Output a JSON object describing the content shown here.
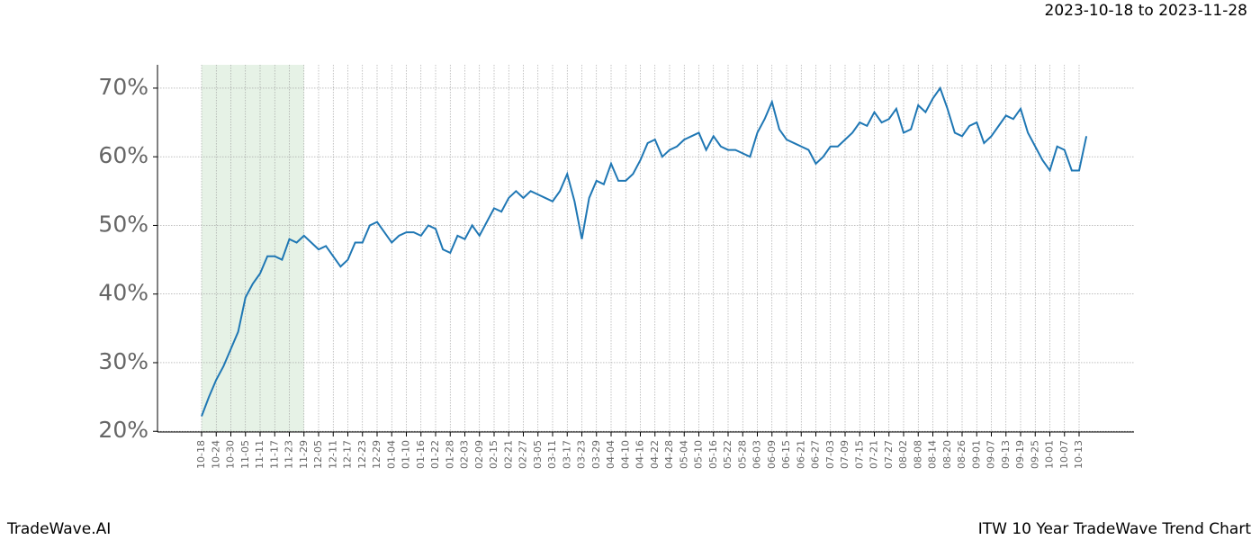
{
  "chart_data": {
    "type": "line",
    "title": "2023-10-18 to 2023-11-28",
    "footer_left": "TradeWave.AI",
    "footer_right": "ITW 10 Year TradeWave Trend Chart",
    "categories": [
      "10-18",
      null,
      "10-24",
      null,
      "10-30",
      null,
      "11-05",
      null,
      "11-11",
      null,
      "11-17",
      null,
      "11-23",
      null,
      "11-29",
      null,
      "12-05",
      null,
      "12-11",
      null,
      "12-17",
      null,
      "12-23",
      null,
      "12-29",
      null,
      "01-04",
      null,
      "01-10",
      null,
      "01-16",
      null,
      "01-22",
      null,
      "01-28",
      null,
      "02-03",
      null,
      "02-09",
      null,
      "02-15",
      null,
      "02-21",
      null,
      "02-27",
      null,
      "03-05",
      null,
      "03-11",
      null,
      "03-17",
      null,
      "03-23",
      null,
      "03-29",
      null,
      "04-04",
      null,
      "04-10",
      null,
      "04-16",
      null,
      "04-22",
      null,
      "04-28",
      null,
      "05-04",
      null,
      "05-10",
      null,
      "05-16",
      null,
      "05-22",
      null,
      "05-28",
      null,
      "06-03",
      null,
      "06-09",
      null,
      "06-15",
      null,
      "06-21",
      null,
      "06-27",
      null,
      "07-03",
      null,
      "07-09",
      null,
      "07-15",
      null,
      "07-21",
      null,
      "07-27",
      null,
      "08-02",
      null,
      "08-08",
      null,
      "08-14",
      null,
      "08-20",
      null,
      "08-26",
      null,
      "09-01",
      null,
      "09-07",
      null,
      "09-13",
      null,
      "09-19",
      null,
      "09-25",
      null,
      "10-01",
      null,
      "10-07",
      null,
      "10-13",
      null
    ],
    "series": [
      {
        "name": "ITW",
        "color": "#1f77b4",
        "values": [
          22.2,
          25,
          27.5,
          29.5,
          32,
          34.5,
          39.5,
          41.5,
          43,
          45.5,
          45.5,
          45,
          48,
          47.5,
          48.5,
          47.5,
          46.5,
          47,
          45.5,
          44,
          45,
          47.5,
          47.5,
          50,
          50.5,
          49,
          47.5,
          48.5,
          49,
          49,
          48.5,
          50,
          49.5,
          46.5,
          46,
          48.5,
          48,
          50,
          48.5,
          50.5,
          52.5,
          52,
          54,
          55,
          54,
          55,
          54.5,
          54,
          53.5,
          55,
          57.5,
          53.5,
          48,
          54,
          56.5,
          56,
          59,
          56.5,
          56.5,
          57.5,
          59.5,
          62,
          62.5,
          60,
          61,
          61.5,
          62.5,
          63,
          63.5,
          61,
          63,
          61.5,
          61,
          61,
          60.5,
          60,
          63.5,
          65.5,
          68,
          64,
          62.5,
          62,
          61.5,
          61,
          59,
          60,
          61.5,
          61.5,
          62.5,
          63.5,
          65,
          64.5,
          66.5,
          65,
          65.5,
          67,
          63.5,
          64,
          67.5,
          66.5,
          68.5,
          70,
          67,
          63.5,
          63,
          64.5,
          65,
          62,
          63,
          64.5,
          66,
          65.5,
          67,
          63.5,
          61.5,
          59.5,
          58,
          61.5,
          61,
          58,
          58,
          63
        ]
      }
    ],
    "ylim": [
      19.9,
      73.4
    ],
    "yticks": [
      {
        "value": 20,
        "label": "20%"
      },
      {
        "value": 30,
        "label": "30%"
      },
      {
        "value": 40,
        "label": "40%"
      },
      {
        "value": 50,
        "label": "50%"
      },
      {
        "value": 60,
        "label": "60%"
      },
      {
        "value": 70,
        "label": "70%"
      }
    ],
    "grid": true,
    "shaded_span": [
      "10-18",
      "11-29"
    ],
    "shade_color": "#e6f2e6"
  }
}
